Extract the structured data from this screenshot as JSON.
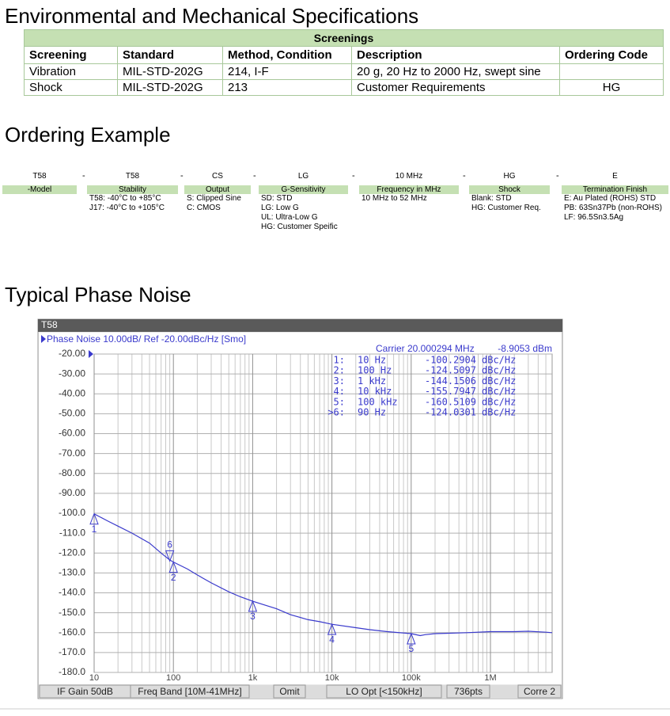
{
  "section1_title": "Environmental and Mechanical Specifications",
  "table": {
    "caption": "Screenings",
    "headers": [
      "Screening",
      "Standard",
      "Method, Condition",
      "Description",
      "Ordering Code"
    ],
    "rows": [
      [
        "Vibration",
        "MIL-STD-202G",
        "214, I-F",
        "20 g, 20 Hz to 2000 Hz, swept sine",
        null
      ],
      [
        "Shock",
        "MIL-STD-202G",
        "213",
        "Customer Requirements",
        "HG"
      ]
    ]
  },
  "section2_title": "Ordering Example",
  "ordering": {
    "separator": "-",
    "items": [
      {
        "code": "T58",
        "label": "-Model",
        "lines": []
      },
      {
        "code": "T58",
        "label": "Stability",
        "lines": [
          "T58: -40°C to +85°C",
          "J17: -40°C to +105°C"
        ]
      },
      {
        "code": "CS",
        "label": "Output",
        "lines": [
          "S: Clipped Sine",
          "C: CMOS"
        ]
      },
      {
        "code": "LG",
        "label": "G-Sensitivity",
        "lines": [
          "SD: STD",
          "LG: Low G",
          "UL: Ultra-Low G",
          "HG: Customer Speific"
        ]
      },
      {
        "code": "10 MHz",
        "label": "Frequency in MHz",
        "lines": [
          "10 MHz to 52 MHz"
        ]
      },
      {
        "code": "HG",
        "label": "Shock",
        "lines": [
          "Blank: STD",
          "HG: Customer Req."
        ]
      },
      {
        "code": "E",
        "label": "Termination Finish",
        "lines": [
          "E: Au Plated (ROHS) STD",
          "PB: 63Sn37Pb (non-ROHS)",
          "LF: 96.5Sn3.5Ag"
        ]
      }
    ]
  },
  "section3_title": "Typical Phase Noise",
  "chart_data": {
    "type": "line",
    "window_title": "T58",
    "trace_header": "Phase Noise 10.00dB/ Ref -20.00dBc/Hz [Smo]",
    "carrier": "Carrier 20.000294 MHz",
    "carrier_power": "-8.9053 dBm",
    "log_x": true,
    "grid": true,
    "color": "#3a3acc",
    "x": [
      10,
      15,
      20,
      30,
      50,
      70,
      90,
      100,
      150,
      200,
      300,
      500,
      700,
      1000,
      2000,
      3000,
      5000,
      7000,
      10000,
      20000,
      30000,
      50000,
      100000,
      130000,
      150000,
      200000,
      300000,
      500000,
      1000000,
      2000000,
      3000000,
      5000000,
      6000000
    ],
    "values": [
      -100.3,
      -104,
      -106.5,
      -110,
      -115,
      -120,
      -123.5,
      -124.5,
      -128,
      -131,
      -135,
      -139.5,
      -142,
      -144.2,
      -148,
      -151,
      -153.5,
      -154.5,
      -155.8,
      -157.5,
      -158.5,
      -159.5,
      -160.5,
      -161.5,
      -161,
      -160.5,
      -160.3,
      -160,
      -159.5,
      -159.5,
      -159.3,
      -159.8,
      -160
    ],
    "xlim": [
      10,
      6000000
    ],
    "ylim": [
      -180,
      -20
    ],
    "xticks": [
      {
        "value": 10,
        "label": "10"
      },
      {
        "value": 100,
        "label": "100"
      },
      {
        "value": 1000,
        "label": "1k"
      },
      {
        "value": 10000,
        "label": "10k"
      },
      {
        "value": 100000,
        "label": "100k"
      },
      {
        "value": 1000000,
        "label": "1M"
      }
    ],
    "yticks": [
      {
        "value": -20,
        "label": "-20.00"
      },
      {
        "value": -30,
        "label": "-30.00"
      },
      {
        "value": -40,
        "label": "-40.00"
      },
      {
        "value": -50,
        "label": "-50.00"
      },
      {
        "value": -60,
        "label": "-60.00"
      },
      {
        "value": -70,
        "label": "-70.00"
      },
      {
        "value": -80,
        "label": "-80.00"
      },
      {
        "value": -90,
        "label": "-90.00"
      },
      {
        "value": -100,
        "label": "-100.0"
      },
      {
        "value": -110,
        "label": "-110.0"
      },
      {
        "value": -120,
        "label": "-120.0"
      },
      {
        "value": -130,
        "label": "-130.0"
      },
      {
        "value": -140,
        "label": "-140.0"
      },
      {
        "value": -150,
        "label": "-150.0"
      },
      {
        "value": -160,
        "label": "-160.0"
      },
      {
        "value": -170,
        "label": "-170.0"
      },
      {
        "value": -180,
        "label": "-180.0"
      }
    ],
    "markers": {
      "ids": [
        "1",
        "2",
        "3",
        "4",
        "5",
        "6"
      ],
      "table_ids": [
        "1:",
        "2:",
        "3:",
        "4:",
        "5:",
        ">6:"
      ],
      "x": [
        10,
        100,
        1000,
        10000,
        100000,
        90
      ],
      "x_labels": [
        "10 Hz",
        "100 Hz",
        "1 kHz",
        "10 kHz",
        "100 kHz",
        "90 Hz"
      ],
      "values": [
        -100.2904,
        -124.5097,
        -144.1506,
        -155.7947,
        -160.5109,
        -124.0301
      ],
      "unit": "dBc/Hz"
    },
    "status_bar": [
      "IF Gain 50dB",
      "Freq Band [10M-41MHz]",
      "Omit",
      "LO Opt [<150kHz]",
      "736pts",
      "Corre 2"
    ]
  }
}
